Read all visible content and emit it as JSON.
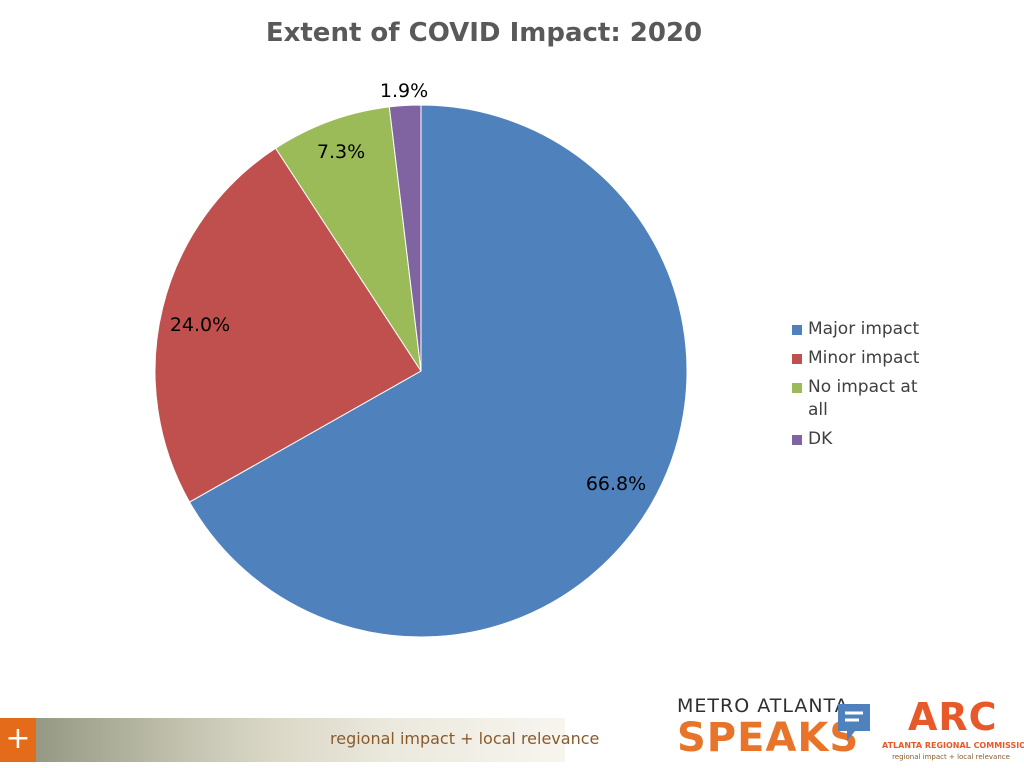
{
  "chart_data": {
    "type": "pie",
    "title": "Extent of COVID Impact: 2020",
    "categories": [
      "Major impact",
      "Minor impact",
      "No impact at all",
      "DK"
    ],
    "values": [
      66.8,
      24.0,
      7.3,
      1.9
    ],
    "data_labels": [
      "66.8%",
      "24.0%",
      "7.3%",
      "1.9%"
    ],
    "colors": [
      "#4f81bd",
      "#c0504d",
      "#9bbb59",
      "#8064a2"
    ],
    "legend_placement": "right"
  },
  "footer": {
    "plus_symbol": "+",
    "tagline": "regional impact + local relevance",
    "metro_logo_top": "METRO ATLANTA",
    "metro_logo_bottom": "SPEAKS",
    "arc_logo_mark": "ARC",
    "arc_logo_name": "ATLANTA REGIONAL COMMISSION",
    "arc_logo_tagline": "regional impact + local relevance"
  }
}
